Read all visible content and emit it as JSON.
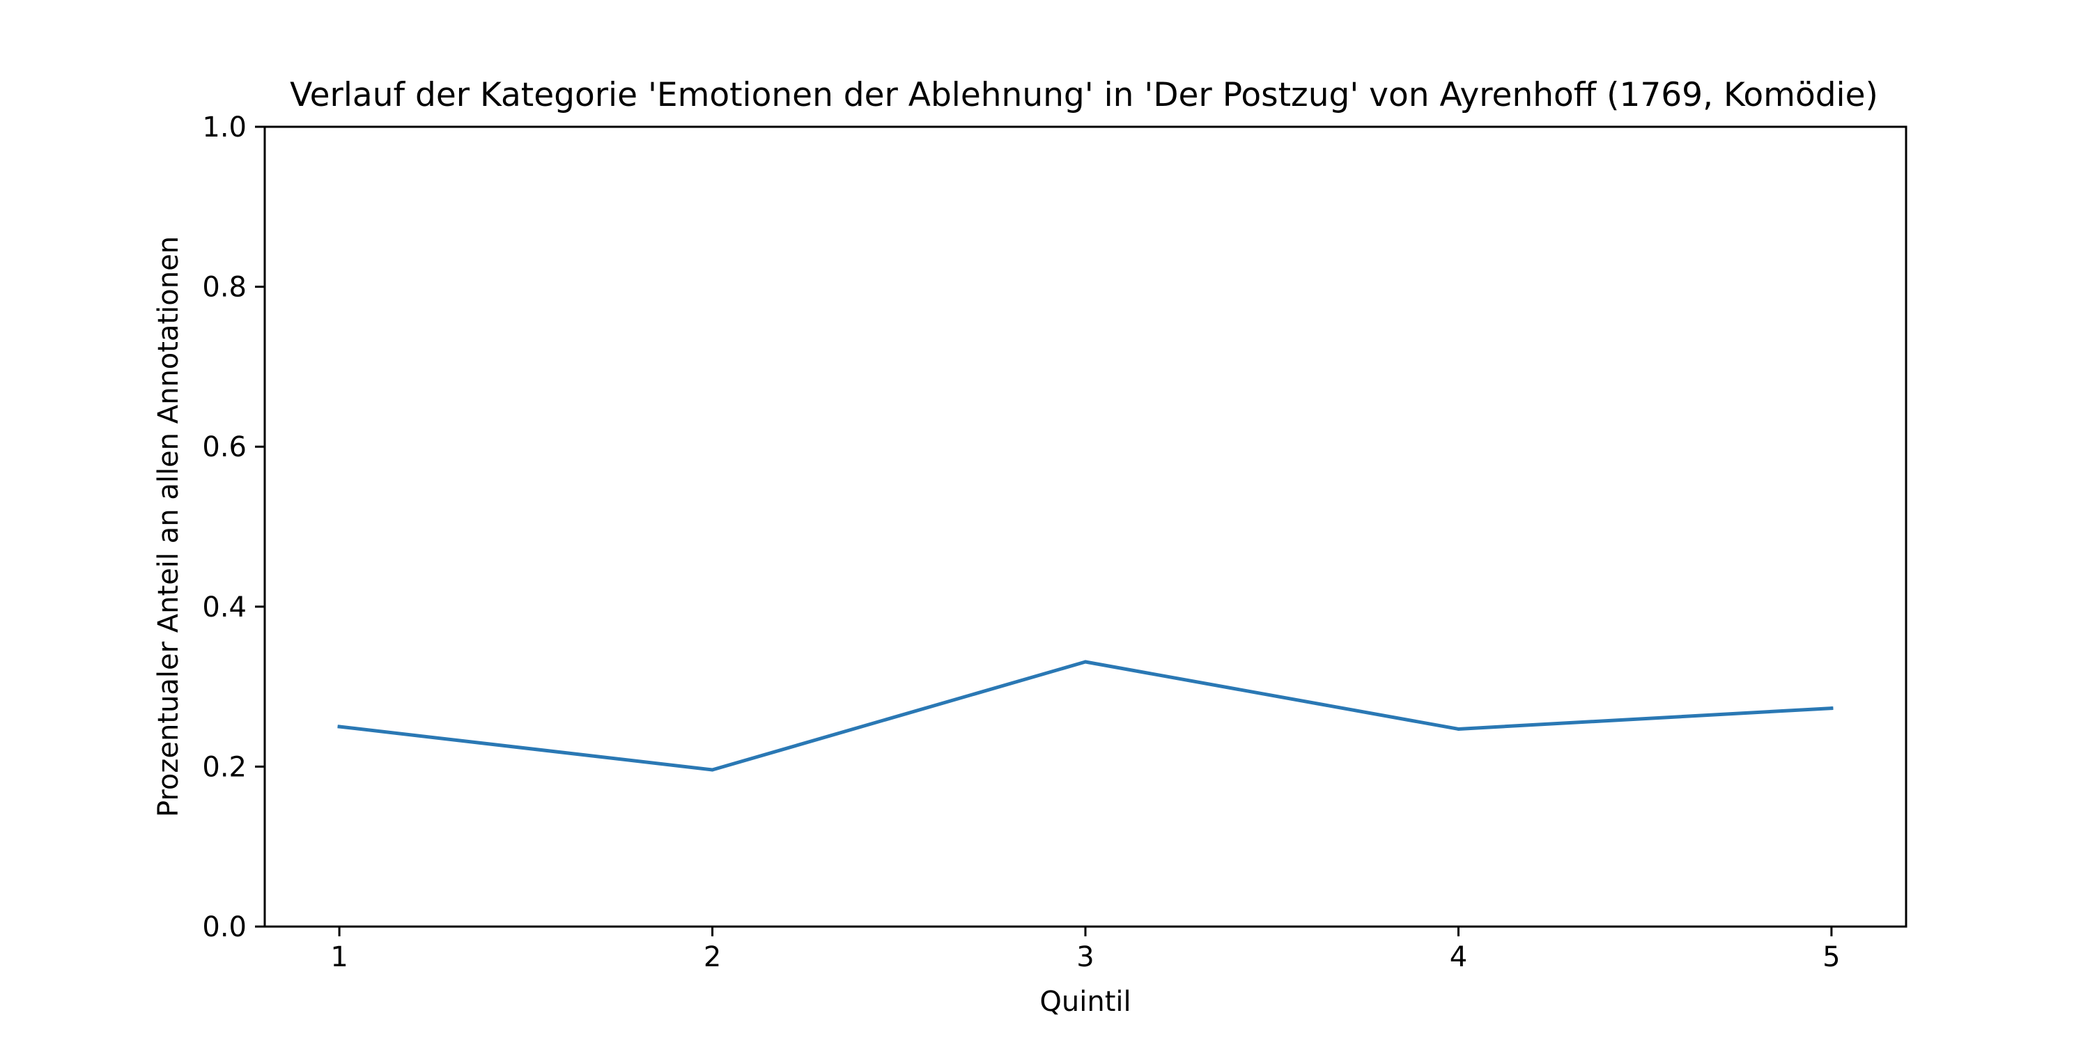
{
  "chart_data": {
    "type": "line",
    "title": "Verlauf der Kategorie 'Emotionen der Ablehnung' in 'Der Postzug' von Ayrenhoff (1769, Komödie)",
    "xlabel": "Quintil",
    "ylabel": "Prozentualer Anteil an allen Annotationen",
    "x": [
      1,
      2,
      3,
      4,
      5
    ],
    "xticks": [
      "1",
      "2",
      "3",
      "4",
      "5"
    ],
    "xlim": [
      0.8,
      5.2
    ],
    "yticks": [
      "0.0",
      "0.2",
      "0.4",
      "0.6",
      "0.8",
      "1.0"
    ],
    "ylim": [
      0,
      1
    ],
    "grid": false,
    "legend": false,
    "series": [
      {
        "color": "#2a78b4",
        "values": [
          0.25,
          0.196,
          0.331,
          0.247,
          0.273
        ]
      }
    ]
  }
}
